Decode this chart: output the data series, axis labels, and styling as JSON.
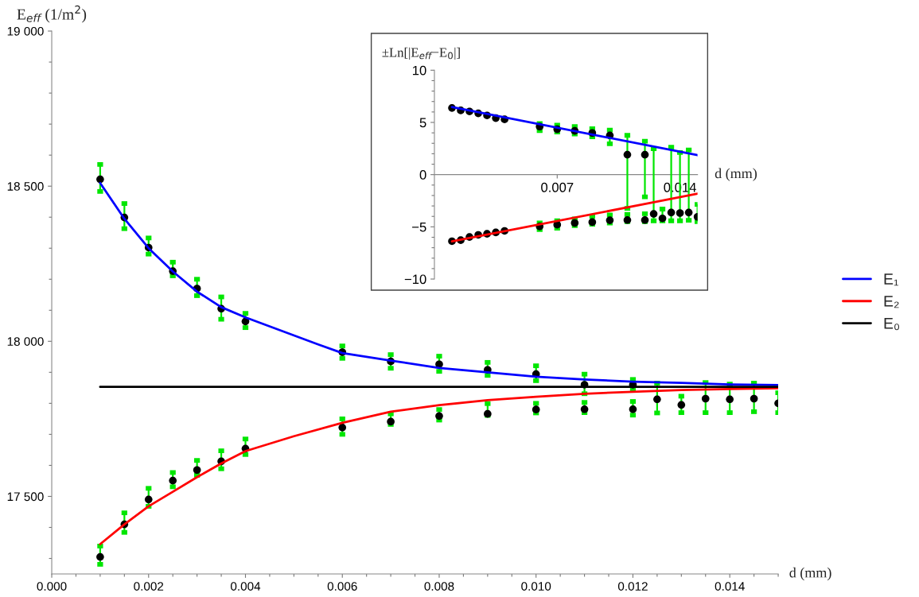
{
  "chart_data": [
    {
      "type": "scatter",
      "xlabel": "d (mm)",
      "ylabel": "E$_{eff}$ (1/m$^{2}$)",
      "legend": "right",
      "grid": false,
      "xlim": [
        0,
        0.015
      ],
      "ylim": [
        17250,
        19000
      ],
      "xticks": [
        {
          "value": 0,
          "label": "0.000"
        },
        {
          "value": 0.0005,
          "label": null
        },
        {
          "value": 0.001,
          "label": null
        },
        {
          "value": 0.0015,
          "label": null
        },
        {
          "value": 0.002,
          "label": "0.002"
        },
        {
          "value": 0.0025,
          "label": null
        },
        {
          "value": 0.003,
          "label": null
        },
        {
          "value": 0.0035,
          "label": null
        },
        {
          "value": 0.004,
          "label": "0.004"
        },
        {
          "value": 0.0045,
          "label": null
        },
        {
          "value": 0.005,
          "label": null
        },
        {
          "value": 0.0055,
          "label": null
        },
        {
          "value": 0.006,
          "label": "0.006"
        },
        {
          "value": 0.0065,
          "label": null
        },
        {
          "value": 0.007,
          "label": null
        },
        {
          "value": 0.0075,
          "label": null
        },
        {
          "value": 0.008,
          "label": "0.008"
        },
        {
          "value": 0.0085,
          "label": null
        },
        {
          "value": 0.009,
          "label": null
        },
        {
          "value": 0.0095,
          "label": null
        },
        {
          "value": 0.01,
          "label": "0.010"
        },
        {
          "value": 0.0105,
          "label": null
        },
        {
          "value": 0.011,
          "label": null
        },
        {
          "value": 0.0115,
          "label": null
        },
        {
          "value": 0.012,
          "label": "0.012"
        },
        {
          "value": 0.0125,
          "label": null
        },
        {
          "value": 0.013,
          "label": null
        },
        {
          "value": 0.0135,
          "label": null
        },
        {
          "value": 0.014,
          "label": "0.014"
        },
        {
          "value": 0.0145,
          "label": null
        },
        {
          "value": 0.015,
          "label": null
        }
      ],
      "yticks": [
        {
          "value": 17300,
          "label": null
        },
        {
          "value": 17400,
          "label": null
        },
        {
          "value": 17500,
          "label": "17 500"
        },
        {
          "value": 17600,
          "label": null
        },
        {
          "value": 17700,
          "label": null
        },
        {
          "value": 17800,
          "label": null
        },
        {
          "value": 17900,
          "label": null
        },
        {
          "value": 18000,
          "label": "18 000"
        },
        {
          "value": 18100,
          "label": null
        },
        {
          "value": 18200,
          "label": null
        },
        {
          "value": 18300,
          "label": null
        },
        {
          "value": 18400,
          "label": null
        },
        {
          "value": 18500,
          "label": "18 500"
        },
        {
          "value": 18600,
          "label": null
        },
        {
          "value": 18700,
          "label": null
        },
        {
          "value": 18800,
          "label": null
        },
        {
          "value": 18900,
          "label": null
        },
        {
          "value": 19000,
          "label": "19 000"
        }
      ],
      "series": [
        {
          "name": "E₁",
          "type": "line",
          "marker": "none",
          "color": "#0000ff",
          "x": [
            0.001,
            0.0015,
            0.002,
            0.0025,
            0.003,
            0.0035,
            0.004,
            0.0055,
            0.006,
            0.007,
            0.008,
            0.009,
            0.01,
            0.011,
            0.012,
            0.013,
            0.014,
            0.015
          ],
          "values": [
            18510,
            18395,
            18300,
            18225,
            18160,
            18110,
            18077,
            17990,
            17962,
            17938,
            17914,
            17900,
            17886,
            17877,
            17870,
            17866,
            17861,
            17859
          ]
        },
        {
          "name": "E₂",
          "type": "line",
          "marker": "none",
          "color": "#ff0000",
          "x": [
            0.001,
            0.0015,
            0.002,
            0.0025,
            0.003,
            0.0035,
            0.004,
            0.005,
            0.006,
            0.007,
            0.008,
            0.009,
            0.01,
            0.011,
            0.012,
            0.013,
            0.014,
            0.015
          ],
          "values": [
            17346,
            17410,
            17468,
            17515,
            17562,
            17606,
            17646,
            17694,
            17737,
            17773,
            17794,
            17810,
            17821,
            17831,
            17837,
            17843,
            17846,
            17849
          ]
        },
        {
          "name": "E₀",
          "type": "line",
          "marker": "none",
          "color": "#000000",
          "x": [
            0.001,
            0.015
          ],
          "values": [
            17853,
            17853
          ]
        },
        {
          "marker": "circle",
          "color": "#00e600",
          "colors": [
            "#000000",
            "#000000",
            "#000000",
            "#000000",
            "#000000",
            "#000000",
            "#000000",
            "#000000",
            "#000000",
            "#000000",
            "#000000",
            "#000000",
            "#000000",
            "#000000"
          ],
          "x": [
            0.001,
            0.0015,
            0.002,
            0.0025,
            0.003,
            0.0035,
            0.004,
            0.006,
            0.007,
            0.008,
            0.009,
            0.01,
            0.011,
            0.012
          ],
          "values": [
            18522,
            18399,
            18302,
            18226,
            18170,
            18105,
            18064,
            17965,
            17935,
            17926,
            17908,
            17894,
            17860,
            17860
          ],
          "errors": [
            [
              18483,
              18570
            ],
            [
              18363,
              18444
            ],
            [
              18281,
              18333
            ],
            [
              18211,
              18255
            ],
            [
              18147,
              18200
            ],
            [
              18071,
              18143
            ],
            [
              18044,
              18090
            ],
            [
              17945,
              17985
            ],
            [
              17913,
              17957
            ],
            [
              17903,
              17952
            ],
            [
              17890,
              17932
            ],
            [
              17873,
              17921
            ],
            [
              17831,
              17894
            ],
            [
              17845,
              17877
            ]
          ]
        },
        {
          "marker": "circle",
          "color": "#00e600",
          "colors": [
            "#000000",
            "#000000",
            "#000000",
            "#000000",
            "#000000",
            "#000000",
            "#000000",
            "#000000",
            "#000000",
            "#000000",
            "#000000",
            "#000000",
            "#000000",
            "#000000",
            "#000000",
            "#000000",
            "#000000",
            "#000000",
            "#000000",
            "#000000"
          ],
          "x": [
            0.001,
            0.0015,
            0.002,
            0.0025,
            0.003,
            0.0035,
            0.004,
            0.006,
            0.007,
            0.008,
            0.009,
            0.01,
            0.011,
            0.012,
            0.0125,
            0.013,
            0.0135,
            0.014,
            0.0145,
            0.015
          ],
          "values": [
            17305,
            17410,
            17490,
            17551,
            17585,
            17613,
            17654,
            17722,
            17741,
            17759,
            17766,
            17780,
            17781,
            17781,
            17813,
            17795,
            17815,
            17813,
            17815,
            17800
          ],
          "errors": [
            [
              17281,
              17340
            ],
            [
              17384,
              17447
            ],
            [
              17468,
              17526
            ],
            [
              17531,
              17577
            ],
            [
              17568,
              17616
            ],
            [
              17589,
              17647
            ],
            [
              17635,
              17685
            ],
            [
              17700,
              17750
            ],
            [
              17732,
              17766
            ],
            [
              17746,
              17780
            ],
            [
              17761,
              17799
            ],
            [
              17769,
              17800
            ],
            [
              17770,
              17803
            ],
            [
              17762,
              17806
            ],
            [
              17769,
              17865
            ],
            [
              17770,
              17823
            ],
            [
              17770,
              17867
            ],
            [
              17770,
              17862
            ],
            [
              17773,
              17865
            ],
            [
              17770,
              17834
            ]
          ]
        }
      ]
    },
    {
      "type": "scatter",
      "xlabel": "d (mm)",
      "ylabel": "±Ln[|E$_{eff}$−E$_{0}$|]",
      "grid": false,
      "xlim": [
        0,
        0.015
      ],
      "ylim": [
        -10,
        10
      ],
      "xticks": [
        0.007,
        0.014
      ],
      "yticks": [
        {
          "value": -10,
          "label": "−10"
        },
        {
          "value": -9,
          "label": null
        },
        {
          "value": -8,
          "label": null
        },
        {
          "value": -7,
          "label": null
        },
        {
          "value": -6,
          "label": null
        },
        {
          "value": -5,
          "label": "−5"
        },
        {
          "value": -4,
          "label": null
        },
        {
          "value": -3,
          "label": null
        },
        {
          "value": -2,
          "label": null
        },
        {
          "value": -1,
          "label": null
        },
        {
          "value": 0,
          "label": "0"
        },
        {
          "value": 1,
          "label": null
        },
        {
          "value": 2,
          "label": null
        },
        {
          "value": 3,
          "label": null
        },
        {
          "value": 4,
          "label": null
        },
        {
          "value": 5,
          "label": "5"
        },
        {
          "value": 6,
          "label": null
        },
        {
          "value": 7,
          "label": null
        },
        {
          "value": 8,
          "label": null
        },
        {
          "value": 9,
          "label": null
        },
        {
          "value": 10,
          "label": "10"
        }
      ],
      "series": [
        {
          "type": "line",
          "marker": "none",
          "color": "#0000ff",
          "x": [
            0.001,
            0.015
          ],
          "values": [
            6.48,
            1.86
          ]
        },
        {
          "type": "line",
          "marker": "none",
          "color": "#ff0000",
          "x": [
            0.001,
            0.015
          ],
          "values": [
            -6.4,
            -1.83
          ]
        },
        {
          "marker": "circle",
          "color": "#00e600",
          "colors": [
            "#000000",
            "#000000",
            "#000000",
            "#000000",
            "#000000",
            "#000000",
            "#000000",
            "#000000",
            "#000000",
            "#000000",
            "#000000",
            "#000000",
            "#000000",
            "#000000"
          ],
          "x": [
            0.001,
            0.0015,
            0.002,
            0.0025,
            0.003,
            0.0035,
            0.004,
            0.006,
            0.007,
            0.008,
            0.009,
            0.01,
            0.011,
            0.012
          ],
          "values": [
            6.38,
            6.15,
            6.05,
            5.87,
            5.67,
            5.41,
            5.29,
            4.6,
            4.35,
            4.19,
            3.99,
            3.76,
            1.91,
            1.91
          ],
          "errors": [
            null,
            null,
            null,
            null,
            null,
            null,
            null,
            [
              4.22,
              4.9
            ],
            [
              4.07,
              4.73
            ],
            [
              3.89,
              4.6
            ],
            [
              3.63,
              4.4
            ],
            [
              2.95,
              4.27
            ],
            [
              -3.23,
              3.76
            ],
            [
              -2.13,
              3.2
            ]
          ]
        },
        {
          "marker": "circle",
          "color": "#00e600",
          "colors": [
            "#000000",
            "#000000",
            "#000000",
            "#000000",
            "#000000",
            "#000000",
            "#000000",
            "#000000",
            "#000000",
            "#000000",
            "#000000",
            "#000000",
            "#000000",
            "#000000",
            "#000000",
            "#000000",
            "#000000",
            "#000000",
            "#000000",
            "#000000"
          ],
          "x": [
            0.001,
            0.0015,
            0.002,
            0.0025,
            0.003,
            0.0035,
            0.004,
            0.006,
            0.007,
            0.008,
            0.009,
            0.01,
            0.011,
            0.012,
            0.0125,
            0.013,
            0.0135,
            0.014,
            0.0145,
            0.015
          ],
          "values": [
            -6.38,
            -6.28,
            -5.97,
            -5.77,
            -5.67,
            -5.54,
            -5.39,
            -4.96,
            -4.8,
            -4.63,
            -4.55,
            -4.37,
            -4.35,
            -4.35,
            -3.76,
            -4.19,
            -3.63,
            -3.68,
            -3.63,
            -4.04
          ],
          "errors": [
            null,
            null,
            null,
            null,
            null,
            null,
            null,
            [
              -5.26,
              -4.63
            ],
            [
              -5.13,
              -4.42
            ],
            [
              -4.88,
              -4.24
            ],
            [
              -4.75,
              -3.99
            ],
            [
              -4.63,
              -3.86
            ],
            [
              -4.5,
              -3.81
            ],
            [
              -4.5,
              -3.74
            ],
            [
              -4.42,
              2.49
            ],
            [
              -4.42,
              -3.3
            ],
            [
              -4.42,
              2.62
            ],
            [
              -4.42,
              2.11
            ],
            [
              -4.37,
              2.36
            ],
            [
              -4.5,
              -2.85
            ]
          ]
        }
      ]
    }
  ]
}
